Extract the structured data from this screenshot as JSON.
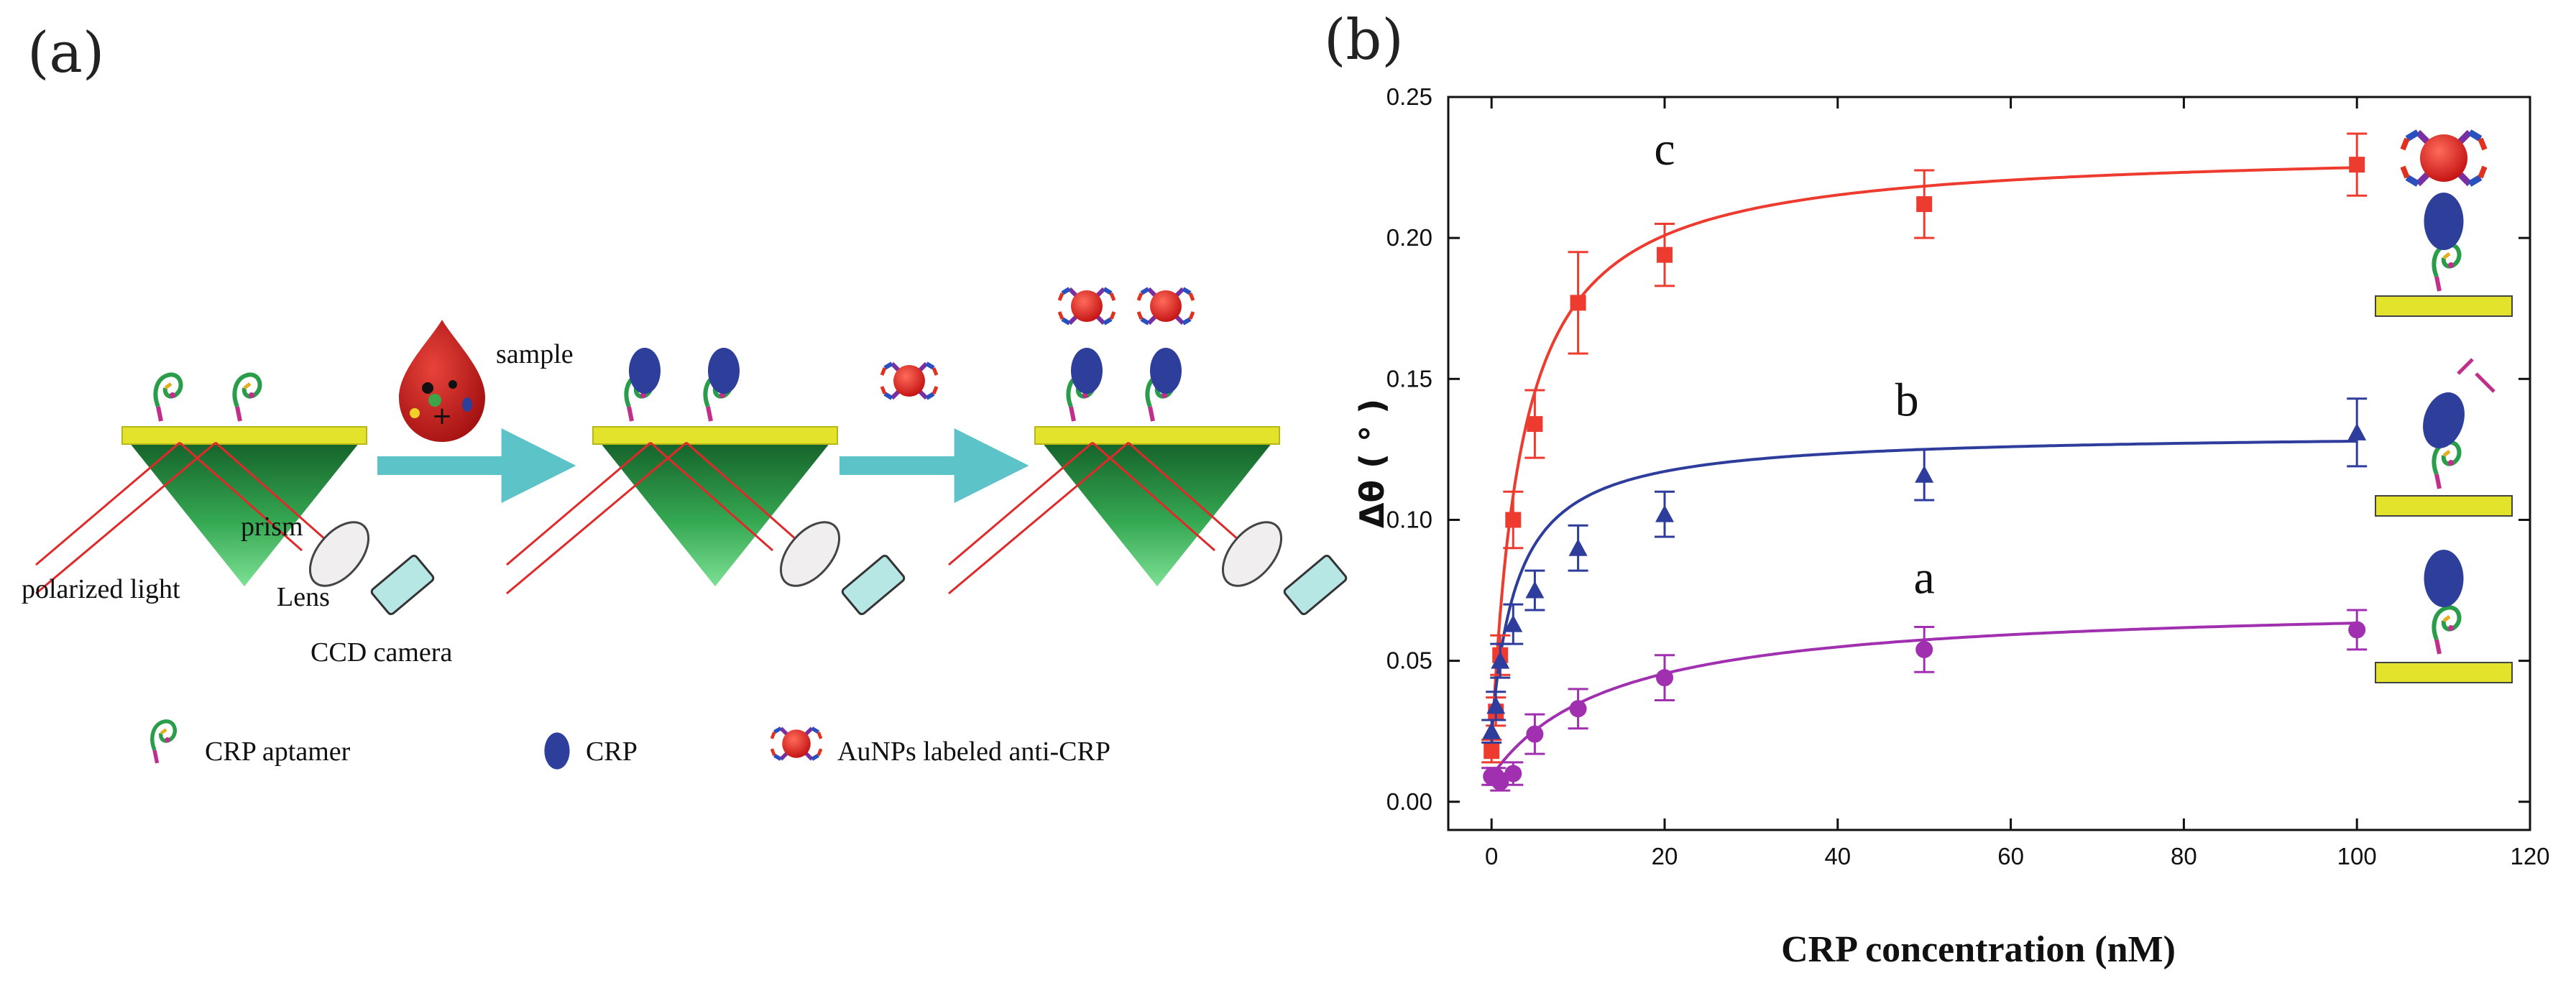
{
  "panel_a": {
    "letter": "(a)",
    "labels": {
      "sample": "sample",
      "prism": "prism",
      "lens": "Lens",
      "polarized_light": "polarized light",
      "ccd_camera": "CCD camera"
    },
    "legend": [
      {
        "label": "CRP aptamer",
        "icon": "aptamer-icon"
      },
      {
        "label": "CRP",
        "icon": "crp-icon"
      },
      {
        "label": "AuNPs labeled anti-CRP",
        "icon": "aunp-antibody-icon"
      }
    ],
    "colors": {
      "gold": "#e3e32c",
      "prism_dark": "#1a6e2d",
      "prism_light": "#5fd07a",
      "arrow": "#5cc3c9",
      "crp": "#2d3e9b",
      "aunp": "#d91b1b",
      "laser": "#e02a2a"
    }
  },
  "panel_b": {
    "letter": "(b)"
  },
  "chart_data": {
    "type": "scatter",
    "title": "",
    "xlabel": "CRP concentration (nM)",
    "ylabel": "Δθ ( ° )",
    "xlim": [
      -5,
      120
    ],
    "ylim": [
      -0.01,
      0.25
    ],
    "xticks": [
      "0",
      "20",
      "40",
      "60",
      "80",
      "100",
      "120"
    ],
    "yticks": [
      "0.00",
      "0.05",
      "0.10",
      "0.15",
      "0.20",
      "0.25"
    ],
    "grid": false,
    "series": [
      {
        "name": "c",
        "label": "c",
        "color": "#ee3b30",
        "marker": "square",
        "x": [
          0,
          0.5,
          1,
          2.5,
          5,
          10,
          20,
          50,
          100
        ],
        "y": [
          0.018,
          0.032,
          0.052,
          0.1,
          0.134,
          0.177,
          0.194,
          0.212,
          0.226
        ],
        "err": [
          0.004,
          0.005,
          0.007,
          0.01,
          0.012,
          0.018,
          0.011,
          0.012,
          0.011
        ],
        "fit_bmax": 0.232,
        "fit_kd": 3.4
      },
      {
        "name": "b",
        "label": "b",
        "color": "#2e3d9c",
        "marker": "triangle",
        "x": [
          0,
          0.5,
          1,
          2.5,
          5,
          10,
          20,
          50,
          100
        ],
        "y": [
          0.025,
          0.034,
          0.05,
          0.063,
          0.075,
          0.09,
          0.102,
          0.116,
          0.131
        ],
        "err": [
          0.004,
          0.005,
          0.006,
          0.007,
          0.007,
          0.008,
          0.008,
          0.009,
          0.012
        ],
        "fit_bmax": 0.131,
        "fit_kd": 3.0
      },
      {
        "name": "a",
        "label": "a",
        "color": "#a030b0",
        "marker": "circle",
        "x": [
          0,
          0.5,
          1,
          2.5,
          5,
          10,
          20,
          50,
          100
        ],
        "y": [
          0.009,
          0.009,
          0.007,
          0.01,
          0.024,
          0.033,
          0.044,
          0.054,
          0.061
        ],
        "err": [
          0.003,
          0.003,
          0.003,
          0.004,
          0.007,
          0.007,
          0.008,
          0.008,
          0.007
        ],
        "fit_bmax": 0.071,
        "fit_kd": 14.0
      }
    ]
  }
}
